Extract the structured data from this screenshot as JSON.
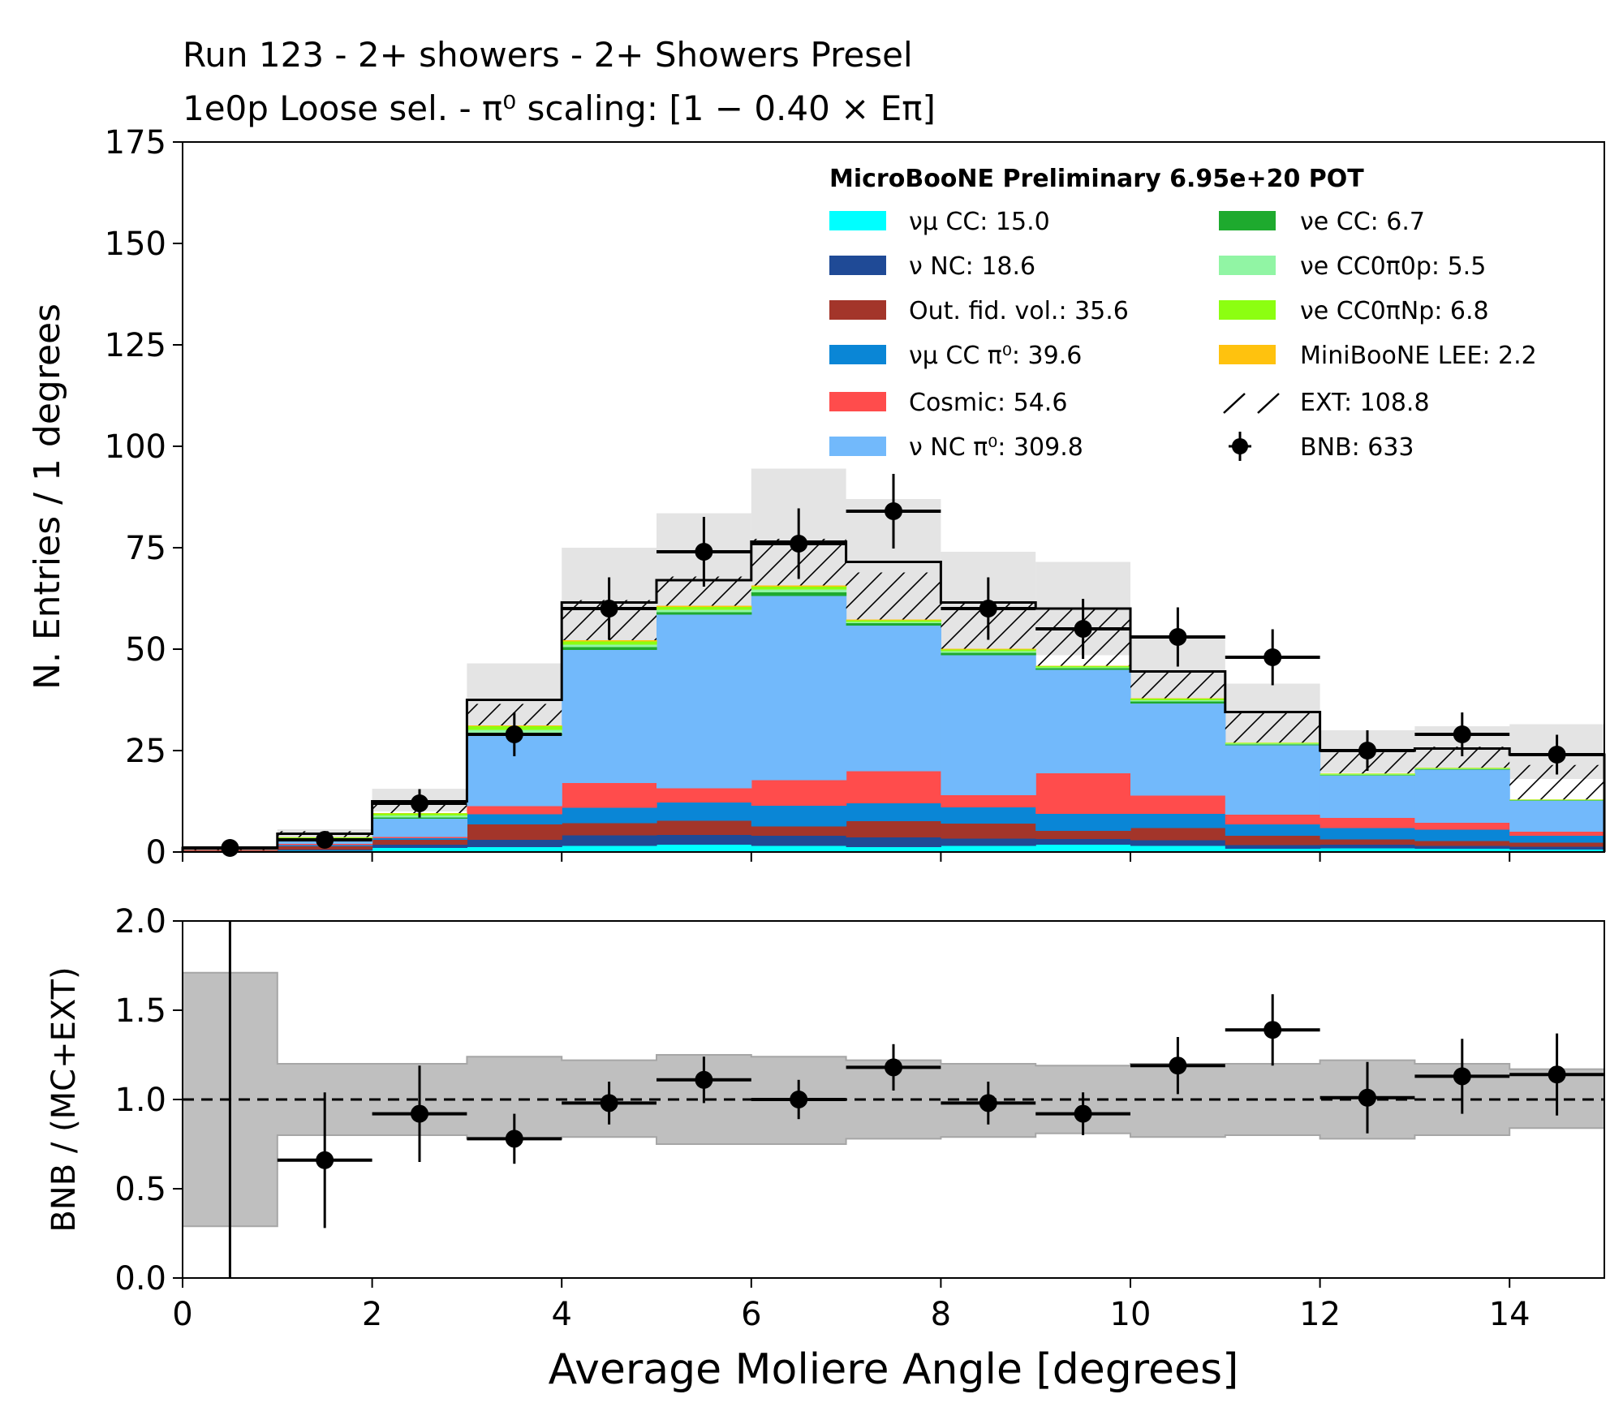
{
  "chart_data": [
    {
      "type": "stacked-histogram",
      "title_lines": [
        "Run 123 - 2+ showers - 2+ Showers Presel",
        "1e0p Loose sel. - π⁰ scaling: [1 − 0.40 × Eπ]"
      ],
      "ylabel": "N. Entries / 1 degrees",
      "ylim": [
        0,
        175
      ],
      "yticks": [
        "0",
        "25",
        "50",
        "75",
        "100",
        "125",
        "150",
        "175"
      ],
      "bin_edges": [
        0,
        1,
        2,
        3,
        4,
        5,
        6,
        7,
        8,
        9,
        10,
        11,
        12,
        13,
        14,
        15
      ],
      "legend_header": "MicroBooNE Preliminary 6.95e+20 POT",
      "legend": [
        {
          "label": "νμ CC: 15.0",
          "color": "#00ffff"
        },
        {
          "label": "ν NC: 18.6",
          "color": "#1f4a96"
        },
        {
          "label": "Out. fid. vol.: 35.6",
          "color": "#a3352a"
        },
        {
          "label": "νμ CC π⁰: 39.6",
          "color": "#0a86d6"
        },
        {
          "label": "Cosmic: 54.6",
          "color": "#ff4c4c"
        },
        {
          "label": "ν NC π⁰: 309.8",
          "color": "#72b9fb"
        },
        {
          "label": "νe CC: 6.7",
          "color": "#1eaa2e"
        },
        {
          "label": "νe CC0π0p: 5.5",
          "color": "#91f5a4"
        },
        {
          "label": "νe CC0πNp: 6.8",
          "color": "#8cff11"
        },
        {
          "label": "MiniBooNE LEE: 2.2",
          "color": "#ffc20e"
        },
        {
          "label": "EXT: 108.8",
          "color": "hatch"
        },
        {
          "label": "BNB: 633",
          "color": "#000000"
        }
      ],
      "stack_order": [
        "νμ CC",
        "ν NC",
        "Out. fid. vol.",
        "νμ CC π⁰",
        "Cosmic",
        "ν NC π⁰",
        "νe CC",
        "νe CC0π0p",
        "νe CC0πNp",
        "MiniBooNE LEE",
        "EXT"
      ],
      "series": [
        {
          "name": "νμ CC",
          "color": "#00ffff",
          "values": [
            0,
            0.3,
            1.0,
            1.2,
            1.5,
            1.8,
            1.5,
            1.2,
            1.5,
            1.8,
            1.5,
            0.8,
            0.9,
            0.8,
            0.6
          ]
        },
        {
          "name": "ν NC",
          "color": "#1f4a96",
          "values": [
            0,
            0.3,
            0.8,
            1.8,
            2.6,
            2.4,
            2.5,
            2.4,
            1.8,
            1.4,
            1.4,
            0.9,
            0.9,
            0.7,
            0.7
          ]
        },
        {
          "name": "Out. fid. vol.",
          "color": "#a3352a",
          "values": [
            0.5,
            0.8,
            1.2,
            3.8,
            3.0,
            3.5,
            2.3,
            4.0,
            3.7,
            2.0,
            3.0,
            2.3,
            1.3,
            1.2,
            1.0
          ]
        },
        {
          "name": "νμ CC π⁰",
          "color": "#0a86d6",
          "values": [
            0,
            0.3,
            0.4,
            2.5,
            3.8,
            4.5,
            5.1,
            4.4,
            4.0,
            4.2,
            3.5,
            2.8,
            2.8,
            2.8,
            1.7
          ]
        },
        {
          "name": "Cosmic",
          "color": "#ff4c4c",
          "values": [
            0,
            0.3,
            0.3,
            2.0,
            6.1,
            3.5,
            6.3,
            7.9,
            3.0,
            10.0,
            4.5,
            2.4,
            2.5,
            1.7,
            1.0
          ]
        },
        {
          "name": "ν NC π⁰",
          "color": "#72b9fb",
          "values": [
            0,
            1.0,
            4.5,
            17.4,
            32.8,
            42.8,
            45.4,
            35.9,
            34.5,
            25.5,
            22.7,
            17.1,
            10.4,
            13.1,
            7.6
          ]
        },
        {
          "name": "νe CC",
          "color": "#1eaa2e",
          "values": [
            0,
            0.1,
            0.3,
            0.5,
            0.7,
            0.6,
            0.9,
            0.6,
            0.6,
            0.4,
            0.5,
            0.2,
            0.1,
            0.1,
            0.1
          ]
        },
        {
          "name": "νe CC0π0p",
          "color": "#91f5a4",
          "values": [
            0,
            0.2,
            0.5,
            0.9,
            0.6,
            0.6,
            0.7,
            0.3,
            0.4,
            0.2,
            0.3,
            0.2,
            0.2,
            0.1,
            0.1
          ]
        },
        {
          "name": "νe CC0πNp",
          "color": "#8cff11",
          "values": [
            0,
            0.3,
            0.5,
            0.9,
            0.8,
            0.7,
            0.7,
            0.4,
            0.4,
            0.3,
            0.4,
            0.2,
            0.2,
            0.2,
            0.1
          ]
        },
        {
          "name": "MiniBooNE LEE",
          "color": "#ffc20e",
          "values": [
            0,
            0.05,
            0.1,
            0.2,
            0.3,
            0.3,
            0.3,
            0.2,
            0.2,
            0.1,
            0.1,
            0.05,
            0.05,
            0.05,
            0.05
          ]
        },
        {
          "name": "EXT",
          "color": "hatch",
          "values": [
            0.5,
            1.5,
            2.8,
            5.3,
            9.9,
            7.2,
            11.5,
            11.6,
            11.1,
            14.0,
            6.6,
            7.5,
            5.2,
            5.2,
            8.5
          ]
        }
      ],
      "mc_total": [
        1.0,
        4.5,
        12.5,
        37.5,
        61.5,
        67.0,
        76.5,
        71.5,
        61.5,
        60.0,
        44.5,
        34.5,
        25.0,
        25.5,
        24.0
      ],
      "err_band": [
        [
          0.7,
          1.3
        ],
        [
          3.6,
          5.6
        ],
        [
          10.0,
          15.6
        ],
        [
          30.0,
          46.5
        ],
        [
          48.5,
          75.0
        ],
        [
          50.5,
          83.5
        ],
        [
          59.5,
          94.5
        ],
        [
          56.0,
          87.0
        ],
        [
          48.0,
          74.0
        ],
        [
          48.5,
          71.5
        ],
        [
          35.5,
          53.0
        ],
        [
          27.0,
          41.5
        ],
        [
          19.5,
          30.0
        ],
        [
          20.0,
          31.0
        ],
        [
          18.0,
          31.5
        ]
      ],
      "data_points": [
        {
          "x": 0.5,
          "y": 1,
          "yerr": 1.0
        },
        {
          "x": 1.5,
          "y": 3,
          "yerr": 1.7
        },
        {
          "x": 2.5,
          "y": 12,
          "yerr": 3.5
        },
        {
          "x": 3.5,
          "y": 29,
          "yerr": 5.4
        },
        {
          "x": 4.5,
          "y": 60,
          "yerr": 7.7
        },
        {
          "x": 5.5,
          "y": 74,
          "yerr": 8.6
        },
        {
          "x": 6.5,
          "y": 76,
          "yerr": 8.7
        },
        {
          "x": 7.5,
          "y": 84,
          "yerr": 9.2
        },
        {
          "x": 8.5,
          "y": 60,
          "yerr": 7.7
        },
        {
          "x": 9.5,
          "y": 55,
          "yerr": 7.4
        },
        {
          "x": 10.5,
          "y": 53,
          "yerr": 7.3
        },
        {
          "x": 11.5,
          "y": 48,
          "yerr": 6.9
        },
        {
          "x": 12.5,
          "y": 25,
          "yerr": 5.0
        },
        {
          "x": 13.5,
          "y": 29,
          "yerr": 5.4
        },
        {
          "x": 14.5,
          "y": 24,
          "yerr": 4.9
        }
      ]
    },
    {
      "type": "ratio",
      "ylabel": "BNB / (MC+EXT)",
      "ylim": [
        0,
        2
      ],
      "yticks": [
        "0.0",
        "0.5",
        "1.0",
        "1.5",
        "2.0"
      ],
      "reference_line": 1.0,
      "xlabel": "Average Moliere Angle [degrees]",
      "xlim": [
        0,
        15
      ],
      "xticks": [
        "0",
        "2",
        "4",
        "6",
        "8",
        "10",
        "12",
        "14"
      ],
      "err_band": [
        [
          0.29,
          1.71
        ],
        [
          0.8,
          1.2
        ],
        [
          0.8,
          1.2
        ],
        [
          0.78,
          1.24
        ],
        [
          0.79,
          1.22
        ],
        [
          0.75,
          1.25
        ],
        [
          0.75,
          1.24
        ],
        [
          0.78,
          1.22
        ],
        [
          0.79,
          1.2
        ],
        [
          0.81,
          1.19
        ],
        [
          0.79,
          1.2
        ],
        [
          0.8,
          1.2
        ],
        [
          0.78,
          1.22
        ],
        [
          0.8,
          1.2
        ],
        [
          0.84,
          1.17
        ]
      ],
      "points": [
        {
          "x": 0.5,
          "y": 1.0,
          "yerr": 1.5
        },
        {
          "x": 1.5,
          "y": 0.66,
          "yerr": 0.38
        },
        {
          "x": 2.5,
          "y": 0.92,
          "yerr": 0.27
        },
        {
          "x": 3.5,
          "y": 0.78,
          "yerr": 0.14
        },
        {
          "x": 4.5,
          "y": 0.98,
          "yerr": 0.12
        },
        {
          "x": 5.5,
          "y": 1.11,
          "yerr": 0.13
        },
        {
          "x": 6.5,
          "y": 1.0,
          "yerr": 0.11
        },
        {
          "x": 7.5,
          "y": 1.18,
          "yerr": 0.13
        },
        {
          "x": 8.5,
          "y": 0.98,
          "yerr": 0.12
        },
        {
          "x": 9.5,
          "y": 0.92,
          "yerr": 0.12
        },
        {
          "x": 10.5,
          "y": 1.19,
          "yerr": 0.16
        },
        {
          "x": 11.5,
          "y": 1.39,
          "yerr": 0.2
        },
        {
          "x": 12.5,
          "y": 1.01,
          "yerr": 0.2
        },
        {
          "x": 13.5,
          "y": 1.13,
          "yerr": 0.21
        },
        {
          "x": 14.5,
          "y": 1.14,
          "yerr": 0.23
        }
      ]
    }
  ]
}
